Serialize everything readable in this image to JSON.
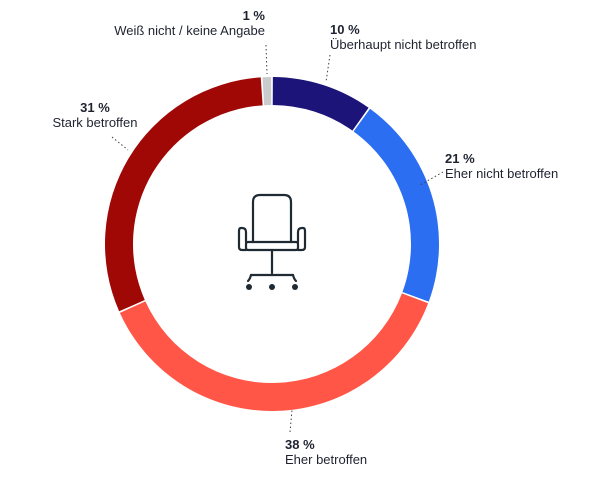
{
  "chart_data": {
    "type": "pie",
    "variant": "donut",
    "slices": [
      {
        "label": "Überhaupt nicht betroffen",
        "value": 10,
        "value_label": "10 %",
        "color": "#1c1478"
      },
      {
        "label": "Eher nicht betroffen",
        "value": 21,
        "value_label": "21 %",
        "color": "#2b6ef2"
      },
      {
        "label": "Eher betroffen",
        "value": 38,
        "value_label": "38 %",
        "color": "#ff5647"
      },
      {
        "label": "Stark betroffen",
        "value": 31,
        "value_label": "31 %",
        "color": "#a00806"
      },
      {
        "label": "Weiß nicht / keine Angabe",
        "value": 1,
        "value_label": "1 %",
        "color": "#c9cbcd"
      }
    ],
    "center_icon": "office-chair-icon"
  }
}
